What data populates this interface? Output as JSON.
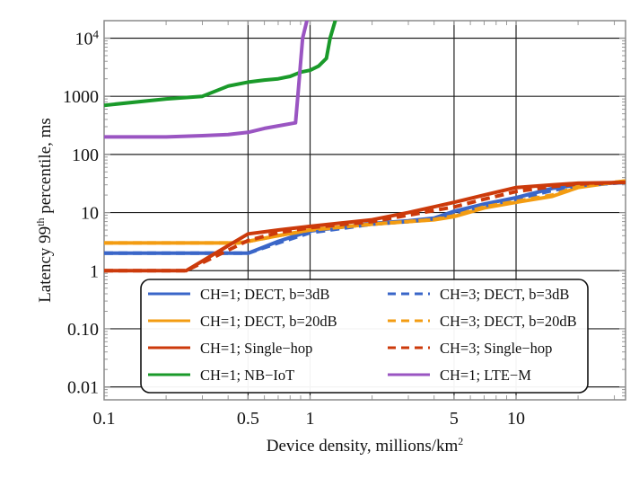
{
  "chart_data": {
    "type": "line",
    "title": "",
    "xlabel": "Device density, millions/km",
    "xlabel_superscript": "2",
    "ylabel_prefix": "Latency 99",
    "ylabel_superscript": "th",
    "ylabel_suffix": " percentile, ms",
    "xscale": "log",
    "yscale": "log",
    "xlim": [
      0.1,
      34
    ],
    "ylim": [
      0.006,
      20000
    ],
    "grid": true,
    "legend_position": "bottom-right",
    "x_ticks": [
      {
        "value": 0.1,
        "label": "0.1"
      },
      {
        "value": 0.5,
        "label": "0.5"
      },
      {
        "value": 1,
        "label": "1"
      },
      {
        "value": 5,
        "label": "5"
      },
      {
        "value": 10,
        "label": "10"
      }
    ],
    "y_ticks": [
      {
        "value": 10000,
        "label": "10",
        "sup": "4"
      },
      {
        "value": 1000,
        "label": "1000",
        "sup": ""
      },
      {
        "value": 100,
        "label": "100",
        "sup": ""
      },
      {
        "value": 10,
        "label": "10",
        "sup": ""
      },
      {
        "value": 1,
        "label": "1",
        "sup": ""
      },
      {
        "value": 0.1,
        "label": "0.10",
        "sup": ""
      },
      {
        "value": 0.01,
        "label": "0.01",
        "sup": ""
      }
    ],
    "series": [
      {
        "name": "CH=1; DECT, b=3dB",
        "color": "#3a66c8",
        "dash": false,
        "x": [
          0.1,
          0.2,
          0.3,
          0.5,
          0.7,
          1,
          2,
          3,
          4,
          5,
          7,
          10,
          15,
          20,
          34
        ],
        "y": [
          2,
          2,
          2,
          2,
          3.2,
          4.8,
          6.5,
          7.2,
          8,
          10.5,
          14,
          18,
          26,
          30,
          33
        ]
      },
      {
        "name": "CH=3; DECT, b=3dB",
        "color": "#3a66c8",
        "dash": true,
        "x": [
          0.1,
          0.2,
          0.3,
          0.5,
          0.7,
          1,
          2,
          3,
          4,
          5,
          7,
          10,
          15,
          20,
          34
        ],
        "y": [
          2,
          2,
          2,
          2,
          3.0,
          4.5,
          6.3,
          7.0,
          7.8,
          9.8,
          13,
          17,
          24,
          29,
          33
        ]
      },
      {
        "name": "CH=1; DECT, b=20dB",
        "color": "#f39c12",
        "dash": false,
        "x": [
          0.1,
          0.2,
          0.3,
          0.45,
          0.5,
          0.7,
          1,
          2,
          3,
          4,
          5,
          7,
          10,
          15,
          20,
          34
        ],
        "y": [
          3,
          3,
          3,
          3,
          3.2,
          4,
          5,
          6.3,
          7,
          7.5,
          8.5,
          12,
          15,
          19,
          27,
          35
        ]
      },
      {
        "name": "CH=3; DECT, b=20dB",
        "color": "#f39c12",
        "dash": true,
        "x": [
          0.1,
          0.2,
          0.3,
          0.45,
          0.5,
          0.7,
          1,
          2,
          3,
          4,
          5,
          7,
          10,
          15,
          20,
          34
        ],
        "y": [
          3,
          3,
          3,
          3,
          3.2,
          4,
          5,
          6.3,
          7,
          7.6,
          8.8,
          12.5,
          15.5,
          20,
          28,
          35
        ]
      },
      {
        "name": "CH=1; Single-hop",
        "color": "#cc3a0b",
        "dash": false,
        "x": [
          0.1,
          0.2,
          0.25,
          0.5,
          0.7,
          1,
          2,
          3,
          5,
          7,
          10,
          15,
          20,
          34
        ],
        "y": [
          1,
          1,
          1,
          4.3,
          5,
          5.8,
          7.5,
          10,
          15,
          20,
          27,
          30,
          32,
          33
        ]
      },
      {
        "name": "CH=3; Single-hop",
        "color": "#cc3a0b",
        "dash": true,
        "x": [
          0.1,
          0.2,
          0.25,
          0.5,
          0.7,
          1,
          2,
          3,
          5,
          7,
          10,
          15,
          20,
          34
        ],
        "y": [
          1,
          1,
          1,
          3.3,
          4.5,
          5.5,
          7,
          9,
          12.5,
          17,
          23,
          28,
          31,
          33
        ]
      },
      {
        "name": "CH=1; NB-IoT",
        "color": "#1a9a2a",
        "dash": false,
        "x": [
          0.1,
          0.2,
          0.3,
          0.4,
          0.5,
          0.6,
          0.7,
          0.8,
          0.9,
          1.0,
          1.1,
          1.2,
          1.25,
          1.35
        ],
        "y": [
          700,
          900,
          1000,
          1500,
          1750,
          1900,
          2000,
          2200,
          2600,
          2800,
          3300,
          4500,
          10000,
          25000
        ]
      },
      {
        "name": "CH=1; LTE-M",
        "color": "#9a55c2",
        "dash": false,
        "x": [
          0.1,
          0.2,
          0.3,
          0.4,
          0.5,
          0.6,
          0.7,
          0.85,
          0.88,
          0.92,
          0.98
        ],
        "y": [
          200,
          200,
          210,
          220,
          240,
          280,
          310,
          350,
          1500,
          10000,
          25000
        ]
      }
    ],
    "legend": [
      {
        "label": "CH=1; DECT, b=3dB",
        "series": 0
      },
      {
        "label": "CH=3; DECT, b=3dB",
        "series": 1
      },
      {
        "label": "CH=1; DECT, b=20dB",
        "series": 2
      },
      {
        "label": "CH=3; DECT, b=20dB",
        "series": 3
      },
      {
        "label": "CH=1; Single−hop",
        "series": 4
      },
      {
        "label": "CH=3; Single−hop",
        "series": 5
      },
      {
        "label": "CH=1; NB−IoT",
        "series": 6
      },
      {
        "label": "CH=1; LTE−M",
        "series": 7
      }
    ]
  }
}
